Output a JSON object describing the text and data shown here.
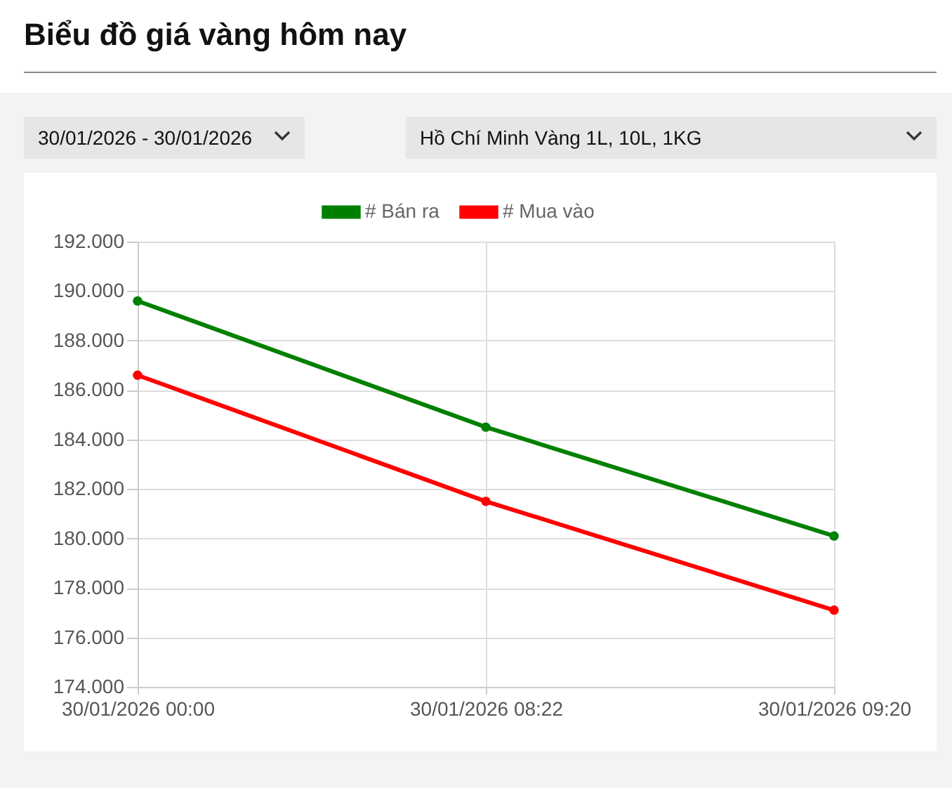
{
  "chart_data": {
    "type": "line",
    "title": "Biểu đồ giá vàng hôm nay",
    "annotations": [
      "30/01/2026 - 30/01/2026",
      "Hồ Chí Minh Vàng 1L, 10L, 1KG"
    ],
    "categories": [
      "30/01/2026 00:00",
      "30/01/2026 08:22",
      "30/01/2026 09:20"
    ],
    "series": [
      {
        "name": "# Bán ra",
        "color": "#008000",
        "values": [
          189600,
          184500,
          180100
        ]
      },
      {
        "name": "# Mua vào",
        "color": "#ff0000",
        "values": [
          186600,
          181500,
          177100
        ]
      }
    ],
    "ylim": [
      174000,
      192000
    ],
    "yticks": [
      {
        "value": 174000,
        "label": "174.000"
      },
      {
        "value": 176000,
        "label": "176.000"
      },
      {
        "value": 178000,
        "label": "178.000"
      },
      {
        "value": 180000,
        "label": "180.000"
      },
      {
        "value": 182000,
        "label": "182.000"
      },
      {
        "value": 184000,
        "label": "184.000"
      },
      {
        "value": 186000,
        "label": "186.000"
      },
      {
        "value": 188000,
        "label": "188.000"
      },
      {
        "value": 190000,
        "label": "190.000"
      },
      {
        "value": 192000,
        "label": "192.000"
      }
    ],
    "grid": true,
    "legend": "top",
    "marker": "circle",
    "line_style": "solid"
  }
}
